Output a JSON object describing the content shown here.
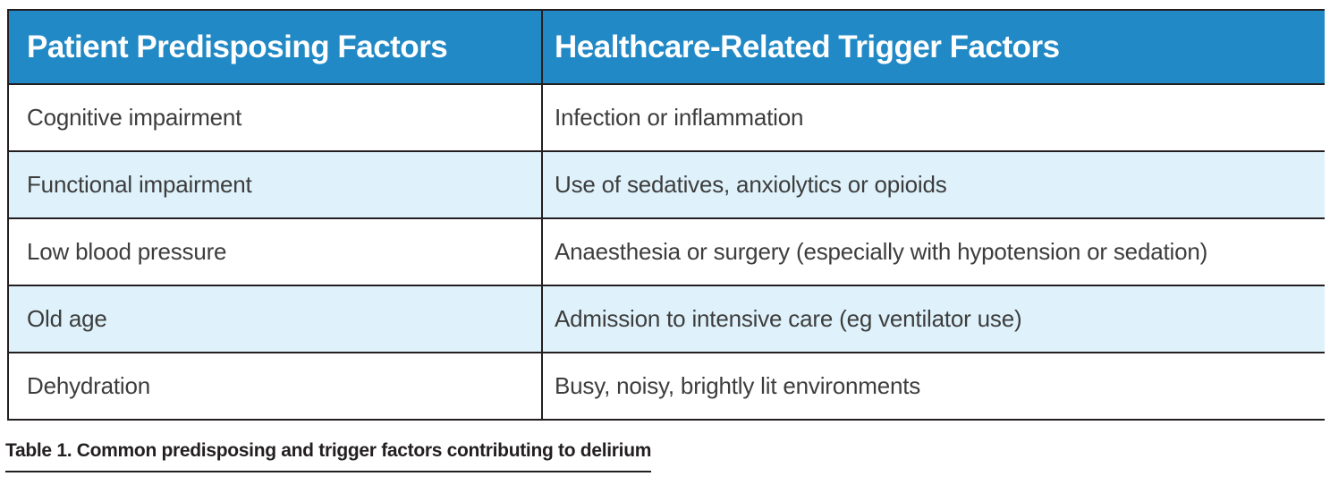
{
  "table": {
    "columns": [
      {
        "header": "Patient Predisposing Factors"
      },
      {
        "header": "Healthcare-Related Trigger Factors"
      }
    ],
    "rows": [
      [
        "Cognitive impairment",
        "Infection or inflammation"
      ],
      [
        "Functional impairment",
        "Use of sedatives, anxiolytics or opioids"
      ],
      [
        "Low blood pressure",
        "Anaesthesia or surgery (especially with hypotension or sedation)"
      ],
      [
        "Old age",
        "Admission to intensive care (eg ventilator use)"
      ],
      [
        "Dehydration",
        "Busy, noisy, brightly lit environments"
      ]
    ]
  },
  "caption": "Table 1. Common predisposing and trigger factors contributing to delirium",
  "colors": {
    "header_bg": "#2189c5",
    "alt_row_bg": "#dff2fb",
    "border": "#231f20",
    "header_text": "#ffffff",
    "body_text": "#3d3d3d"
  }
}
